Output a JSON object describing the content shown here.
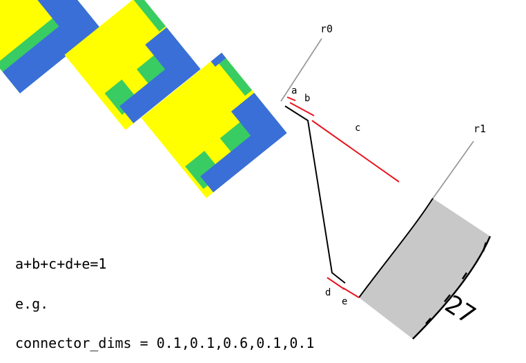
{
  "labels": {
    "ray0": "r0",
    "ray1": "r1",
    "segments": [
      "a",
      "b",
      "c",
      "d",
      "e"
    ],
    "ruler_value": "27"
  },
  "captions": {
    "formula": "a+b+c+d+e=1",
    "example": "e.g.",
    "dims": "connector_dims = 0.1,0.1,0.6,0.1,0.1"
  },
  "colors": {
    "tile_yellow": "#ffff00",
    "tile_blue": "#3a6fd8",
    "tile_green": "#39cc62",
    "guide_gray": "#9a9a9a",
    "segment_red": "#e8141e",
    "connector_black": "#000000",
    "gray_block": "#c8c8c8"
  }
}
